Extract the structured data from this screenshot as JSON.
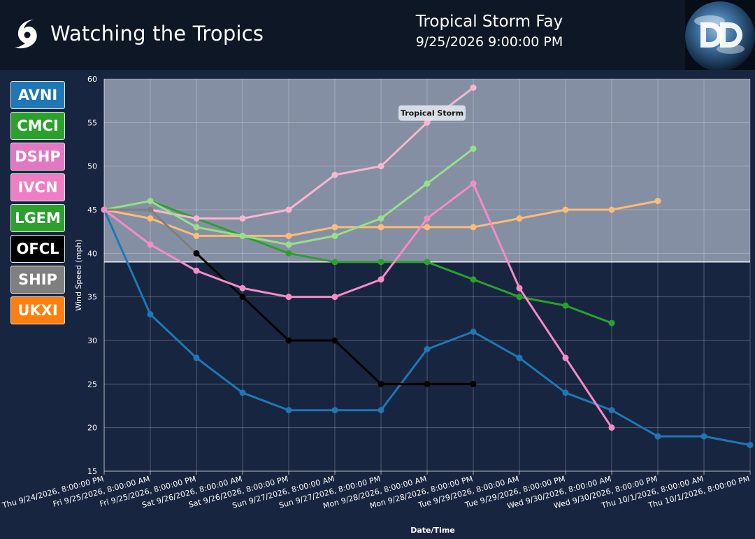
{
  "header": {
    "brand": "Watching the Tropics",
    "storm_name": "Tropical Storm Fay",
    "timestamp": "9/25/2026 9:00:00 PM"
  },
  "legend": [
    {
      "label": "AVNI",
      "color": "#1f77b4"
    },
    {
      "label": "CMCI",
      "color": "#2ca02c"
    },
    {
      "label": "DSHP",
      "color": "#e377c2"
    },
    {
      "label": "IVCN",
      "color": "#f07ec4"
    },
    {
      "label": "LGEM",
      "color": "#2ca02c"
    },
    {
      "label": "OFCL",
      "color": "#000000"
    },
    {
      "label": "SHIP",
      "color": "#7f7f7f"
    },
    {
      "label": "UKXI",
      "color": "#ff7f0e"
    }
  ],
  "chart_data": {
    "type": "line",
    "xlabel": "Date/Time",
    "ylabel": "Wind Speed (mph)",
    "ylim": [
      15,
      60
    ],
    "yticks": [
      15,
      20,
      25,
      30,
      35,
      40,
      45,
      50,
      55,
      60
    ],
    "grid": true,
    "categories": [
      "Thu 9/24/2026, 8:00:00 PM",
      "Fri 9/25/2026, 8:00:00 AM",
      "Fri 9/25/2026, 8:00:00 PM",
      "Sat 9/26/2026, 8:00:00 AM",
      "Sat 9/26/2026, 8:00:00 PM",
      "Sun 9/27/2026, 8:00:00 AM",
      "Sun 9/27/2026, 8:00:00 PM",
      "Mon 9/28/2026, 8:00:00 AM",
      "Mon 9/28/2026, 8:00:00 PM",
      "Tue 9/29/2026, 8:00:00 AM",
      "Tue 9/29/2026, 8:00:00 PM",
      "Wed 9/30/2026, 8:00:00 AM",
      "Wed 9/30/2026, 8:00:00 PM",
      "Thu 10/1/2026, 8:00:00 AM",
      "Thu 10/1/2026, 8:00:00 PM"
    ],
    "band": {
      "label": "Tropical Storm",
      "from": 39,
      "to": 60,
      "color": "#b4bccd"
    },
    "series": [
      {
        "color": "#1f77b4",
        "values": [
          45,
          33,
          28,
          24,
          22,
          22,
          22,
          29,
          31,
          28,
          24,
          22,
          19,
          19,
          18
        ]
      },
      {
        "color": "#2ca02c",
        "values": [
          45,
          46,
          44,
          42,
          40,
          39,
          39,
          39,
          37,
          35,
          34,
          32,
          null,
          null,
          null
        ]
      },
      {
        "color": "#ffbb78",
        "values": [
          45,
          44,
          42,
          42,
          42,
          43,
          43,
          43,
          43,
          44,
          45,
          45,
          46,
          null,
          null
        ]
      },
      {
        "color": "#f7b6d2",
        "values": [
          45,
          45,
          44,
          44,
          45,
          49,
          50,
          55,
          59,
          null,
          null,
          null,
          null,
          null,
          null
        ]
      },
      {
        "color": "#98df8a",
        "values": [
          45,
          46,
          43,
          42,
          41,
          42,
          44,
          48,
          52,
          null,
          null,
          null,
          null,
          null,
          null
        ]
      },
      {
        "color": "#7f7f7f",
        "values": [
          45,
          45,
          40,
          35,
          null,
          null,
          null,
          null,
          null,
          null,
          null,
          null,
          null,
          null,
          null
        ]
      },
      {
        "color": "#000000",
        "values": [
          null,
          null,
          40,
          35,
          30,
          30,
          25,
          25,
          25,
          null,
          null,
          null,
          null,
          null,
          null
        ]
      },
      {
        "color": "#f48cc8",
        "values": [
          45,
          41,
          38,
          36,
          35,
          35,
          37,
          44,
          48,
          36,
          28,
          20,
          null,
          null,
          null
        ]
      }
    ]
  }
}
